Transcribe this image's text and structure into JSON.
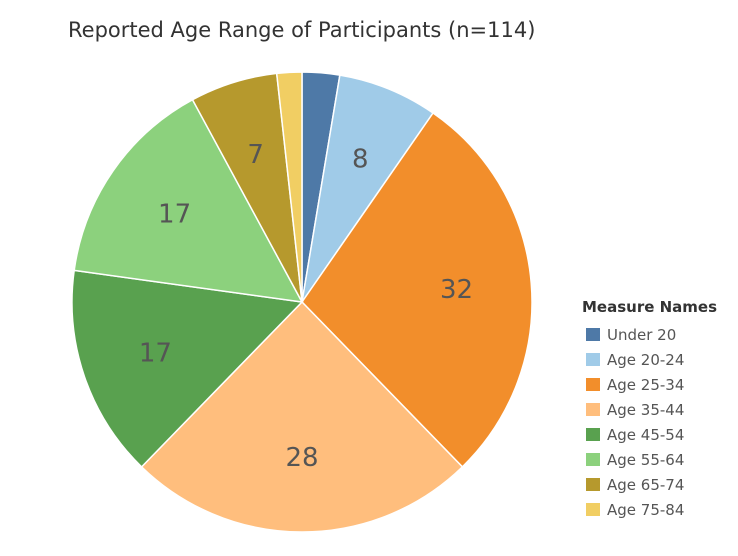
{
  "chart_data": {
    "type": "pie",
    "title": "Reported Age Range of Participants (n=114)",
    "legend_title": "Measure Names",
    "legend_position": "right",
    "start_angle": "12 o'clock, clockwise",
    "slices": [
      {
        "label": "Under 20",
        "value": 3,
        "shown_label": "",
        "color": "#4e79a7"
      },
      {
        "label": "Age 20-24",
        "value": 8,
        "shown_label": "8",
        "color": "#a0cbe8"
      },
      {
        "label": "Age 25-34",
        "value": 32,
        "shown_label": "32",
        "color": "#f28e2b"
      },
      {
        "label": "Age 35-44",
        "value": 28,
        "shown_label": "28",
        "color": "#ffbe7d"
      },
      {
        "label": "Age 45-54",
        "value": 17,
        "shown_label": "17",
        "color": "#59a14f"
      },
      {
        "label": "Age 55-64",
        "value": 17,
        "shown_label": "17",
        "color": "#8cd17d"
      },
      {
        "label": "Age 65-74",
        "value": 7,
        "shown_label": "7",
        "color": "#b6992d"
      },
      {
        "label": "Age 75-84",
        "value": 2,
        "shown_label": "",
        "color": "#f1ce63"
      }
    ]
  }
}
